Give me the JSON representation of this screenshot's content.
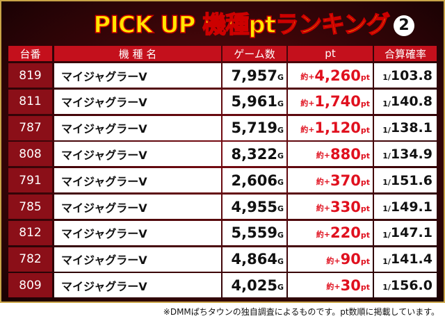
{
  "header": {
    "title": "PICK UP 機種ptランキング",
    "badge": "2"
  },
  "table": {
    "columns": [
      "台番",
      "機 種 名",
      "ゲーム数",
      "pt",
      "合算確率"
    ],
    "rows": [
      [
        "819",
        "マイジャグラーV",
        {
          "number": "7,957",
          "unit": "G"
        },
        {
          "prefix": "約+",
          "number": "4,260",
          "unit": "pt"
        },
        {
          "prefix": "1/",
          "number": "103.8"
        }
      ],
      [
        "811",
        "マイジャグラーV",
        {
          "number": "5,961",
          "unit": "G"
        },
        {
          "prefix": "約+",
          "number": "1,740",
          "unit": "pt"
        },
        {
          "prefix": "1/",
          "number": "140.8"
        }
      ],
      [
        "787",
        "マイジャグラーV",
        {
          "number": "5,719",
          "unit": "G"
        },
        {
          "prefix": "約+",
          "number": "1,120",
          "unit": "pt"
        },
        {
          "prefix": "1/",
          "number": "138.1"
        }
      ],
      [
        "808",
        "マイジャグラーV",
        {
          "number": "8,322",
          "unit": "G"
        },
        {
          "prefix": "約+",
          "number": "880",
          "unit": "pt"
        },
        {
          "prefix": "1/",
          "number": "134.9"
        }
      ],
      [
        "791",
        "マイジャグラーV",
        {
          "number": "2,606",
          "unit": "G"
        },
        {
          "prefix": "約+",
          "number": "370",
          "unit": "pt"
        },
        {
          "prefix": "1/",
          "number": "151.6"
        }
      ],
      [
        "785",
        "マイジャグラーV",
        {
          "number": "4,955",
          "unit": "G"
        },
        {
          "prefix": "約+",
          "number": "330",
          "unit": "pt"
        },
        {
          "prefix": "1/",
          "number": "149.1"
        }
      ],
      [
        "812",
        "マイジャグラーV",
        {
          "number": "5,559",
          "unit": "G"
        },
        {
          "prefix": "約+",
          "number": "220",
          "unit": "pt"
        },
        {
          "prefix": "1/",
          "number": "147.1"
        }
      ],
      [
        "782",
        "マイジャグラーV",
        {
          "number": "4,864",
          "unit": "G"
        },
        {
          "prefix": "約+",
          "number": "90",
          "unit": "pt"
        },
        {
          "prefix": "1/",
          "number": "141.4"
        }
      ],
      [
        "809",
        "マイジャグラーV",
        {
          "number": "4,025",
          "unit": "G"
        },
        {
          "prefix": "約+",
          "number": "30",
          "unit": "pt"
        },
        {
          "prefix": "1/",
          "number": "156.0"
        }
      ]
    ]
  },
  "footnote": "※DMMぱちタウンの独自調査によるものです。pt数順に掲載しています。"
}
